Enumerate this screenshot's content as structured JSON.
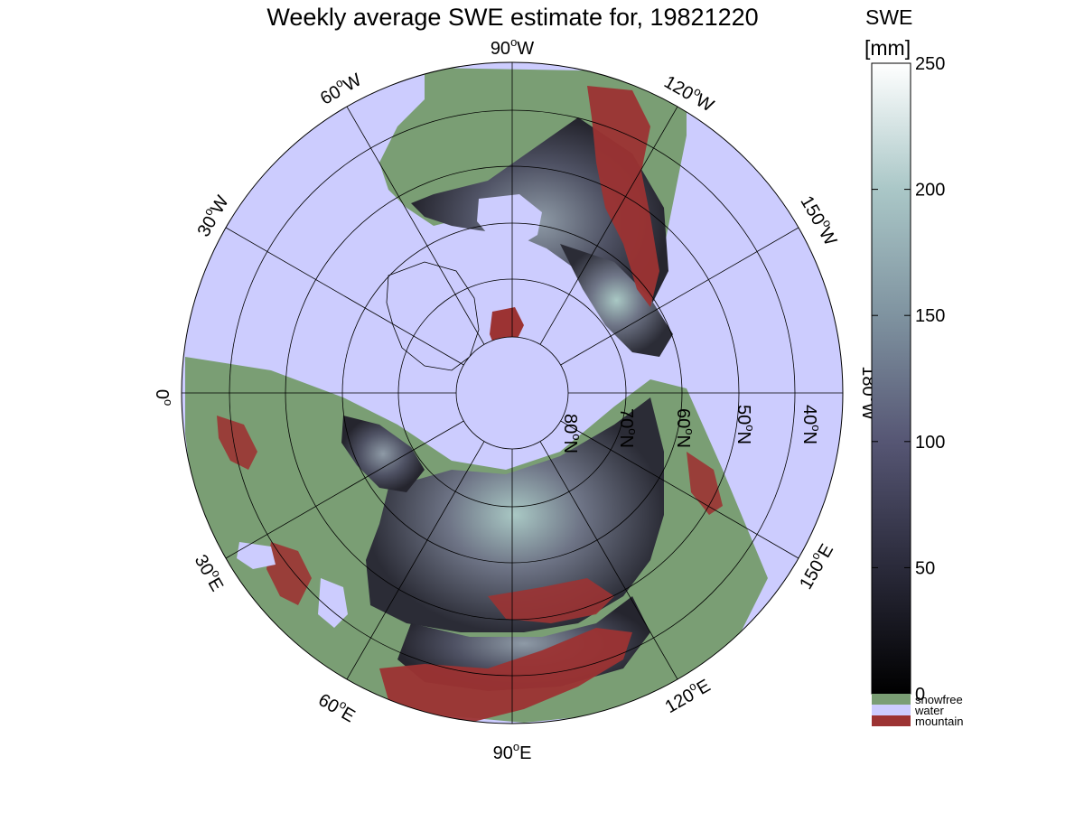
{
  "title": "Weekly average SWE estimate for, 19821220",
  "colorbar": {
    "label_line1": "SWE",
    "label_line2": "[mm]",
    "min": 0,
    "max": 250,
    "ticks": [
      0,
      50,
      100,
      150,
      200,
      250
    ],
    "colormap": "bone",
    "categories": [
      {
        "label": "snowfree",
        "color": "#7a9e74"
      },
      {
        "label": "water",
        "color": "#ccccfe"
      },
      {
        "label": "mountain",
        "color": "#9c3333"
      }
    ]
  },
  "map": {
    "projection": "north polar azimuthal",
    "ocean_color": "#ccccfe",
    "longitude_labels": [
      {
        "text": "90",
        "sup": "o",
        "suffix": "W"
      },
      {
        "text": "120",
        "sup": "o",
        "suffix": "W"
      },
      {
        "text": "150",
        "sup": "o",
        "suffix": "W"
      },
      {
        "text": "180",
        "sup": "o",
        "suffix": "W"
      },
      {
        "text": "150",
        "sup": "o",
        "suffix": "E"
      },
      {
        "text": "120",
        "sup": "o",
        "suffix": "E"
      },
      {
        "text": "90",
        "sup": "o",
        "suffix": "E"
      },
      {
        "text": "60",
        "sup": "o",
        "suffix": "E"
      },
      {
        "text": "30",
        "sup": "o",
        "suffix": "E"
      },
      {
        "text": "0",
        "sup": "o",
        "suffix": ""
      },
      {
        "text": "30",
        "sup": "o",
        "suffix": "W"
      },
      {
        "text": "60",
        "sup": "o",
        "suffix": "W"
      }
    ],
    "latitude_labels": [
      {
        "text": "80",
        "sup": "o",
        "suffix": "N"
      },
      {
        "text": "70",
        "sup": "o",
        "suffix": "N"
      },
      {
        "text": "60",
        "sup": "o",
        "suffix": "N"
      },
      {
        "text": "50",
        "sup": "o",
        "suffix": "N"
      },
      {
        "text": "40",
        "sup": "o",
        "suffix": "N"
      }
    ]
  }
}
